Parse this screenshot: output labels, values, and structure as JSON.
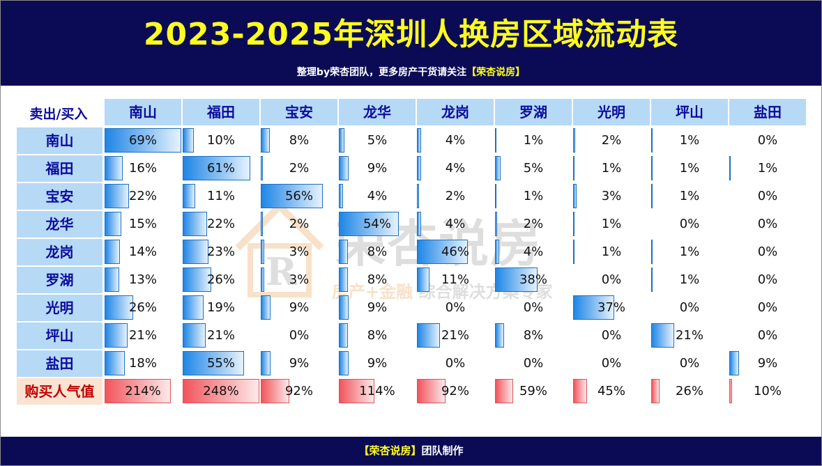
{
  "header": {
    "title": "2023-2025年深圳人换房区域流动表",
    "subtitle_prefix": "整理by荣杏团队，更多房产干货请关注",
    "subtitle_highlight": "【荣杏说房】"
  },
  "footer": {
    "highlight": "【荣杏说房】",
    "text": "团队制作"
  },
  "watermark": {
    "brand": "荣杏说房",
    "tagline_a": "房产+金融",
    "tagline_b": "综合解决方案专家"
  },
  "colors": {
    "header_bg": "#0b0b55",
    "title_yellow": "#ffff1f",
    "blue_bar": "#1f86e6",
    "red_bar": "#f2545c",
    "label_blue": "#0b0b9a",
    "label_red": "#c00000"
  },
  "chart_data": {
    "type": "table",
    "corner_label": "卖出/买入",
    "columns": [
      "南山",
      "福田",
      "宝安",
      "龙华",
      "龙岗",
      "罗湖",
      "光明",
      "坪山",
      "盐田"
    ],
    "rows": [
      {
        "name": "南山",
        "values": [
          69,
          10,
          8,
          5,
          4,
          1,
          2,
          1,
          0
        ],
        "labels": [
          "69%",
          "10%",
          "8%",
          "5%",
          "4%",
          "1%",
          "2%",
          "1%",
          "0%"
        ]
      },
      {
        "name": "福田",
        "values": [
          16,
          61,
          2,
          9,
          4,
          5,
          1,
          1,
          1
        ],
        "labels": [
          "16%",
          "61%",
          "2%",
          "9%",
          "4%",
          "5%",
          "1%",
          "1%",
          "1%"
        ]
      },
      {
        "name": "宝安",
        "values": [
          22,
          11,
          56,
          4,
          2,
          1,
          3,
          1,
          0
        ],
        "labels": [
          "22%",
          "11%",
          "56%",
          "4%",
          "2%",
          "1%",
          "3%",
          "1%",
          "0%"
        ]
      },
      {
        "name": "龙华",
        "values": [
          15,
          22,
          2,
          54,
          4,
          2,
          1,
          0,
          0
        ],
        "labels": [
          "15%",
          "22%",
          "2%",
          "54%",
          "4%",
          "2%",
          "1%",
          "0%",
          "0%"
        ]
      },
      {
        "name": "龙岗",
        "values": [
          14,
          23,
          3,
          8,
          46,
          4,
          1,
          1,
          0
        ],
        "labels": [
          "14%",
          "23%",
          "3%",
          "8%",
          "46%",
          "4%",
          "1%",
          "1%",
          "0%"
        ]
      },
      {
        "name": "罗湖",
        "values": [
          13,
          26,
          3,
          8,
          11,
          38,
          0,
          1,
          0
        ],
        "labels": [
          "13%",
          "26%",
          "3%",
          "8%",
          "11%",
          "38%",
          "0%",
          "1%",
          "0%"
        ]
      },
      {
        "name": "光明",
        "values": [
          26,
          19,
          9,
          9,
          0,
          0,
          37,
          0,
          0
        ],
        "labels": [
          "26%",
          "19%",
          "9%",
          "9%",
          "0%",
          "0%",
          "37%",
          "0%",
          "0%"
        ]
      },
      {
        "name": "坪山",
        "values": [
          21,
          21,
          0,
          8,
          21,
          8,
          0,
          21,
          0
        ],
        "labels": [
          "21%",
          "21%",
          "0%",
          "8%",
          "21%",
          "8%",
          "0%",
          "21%",
          "0%"
        ]
      },
      {
        "name": "盐田",
        "values": [
          18,
          55,
          9,
          9,
          0,
          0,
          0,
          0,
          9
        ],
        "labels": [
          "18%",
          "55%",
          "9%",
          "9%",
          "0%",
          "0%",
          "0%",
          "0%",
          "9%"
        ]
      }
    ],
    "total_row": {
      "name": "购买人气值",
      "values": [
        214,
        248,
        92,
        114,
        92,
        59,
        45,
        26,
        10
      ],
      "labels": [
        "214%",
        "248%",
        "92%",
        "114%",
        "92%",
        "59%",
        "45%",
        "26%",
        "10%"
      ]
    },
    "scale_max": 69,
    "total_scale_max": 248
  }
}
